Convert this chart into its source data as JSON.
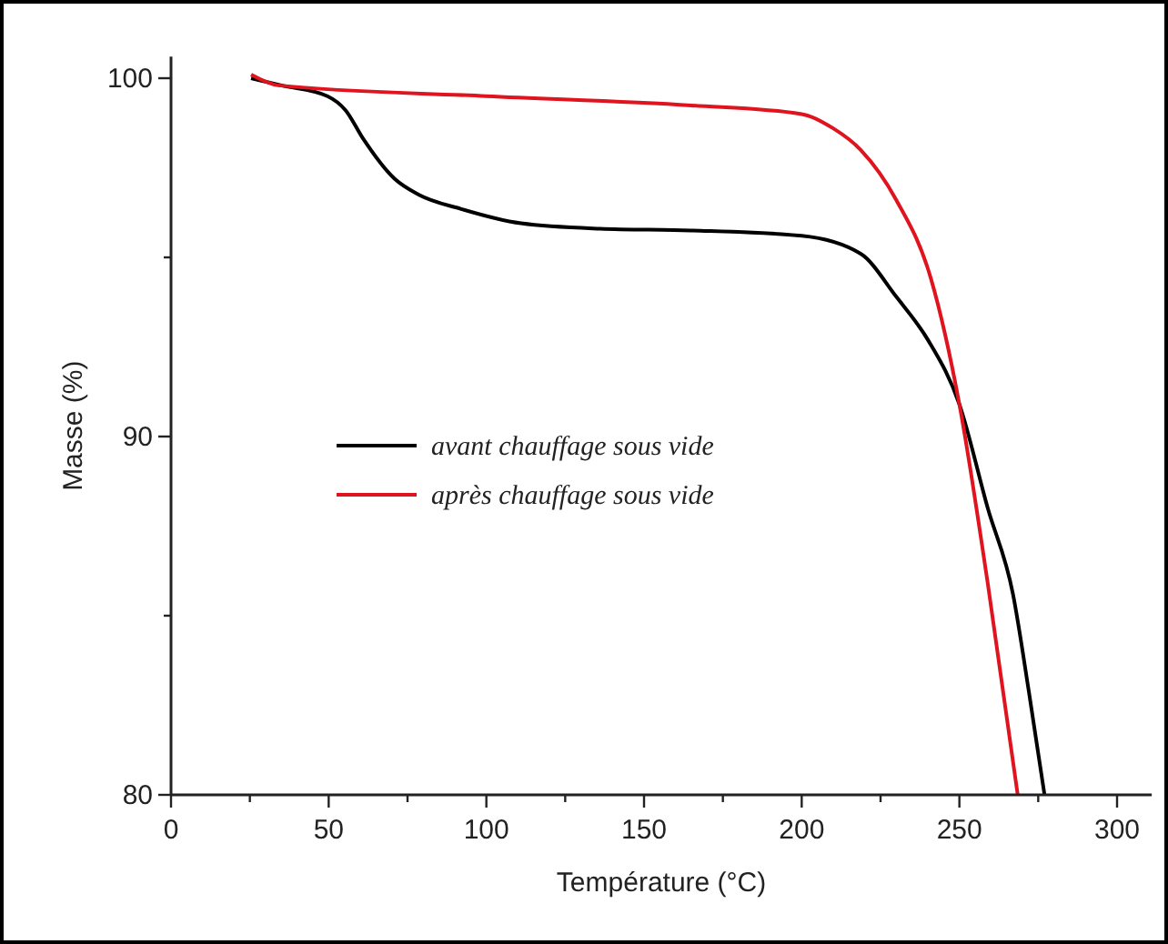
{
  "chart_data": {
    "type": "line",
    "xlabel": "Température (°C)",
    "ylabel": "Masse (%)",
    "xlim": [
      0,
      311
    ],
    "ylim": [
      80,
      100.6
    ],
    "xticks": [
      0,
      {
        "value": 25,
        "label": null
      },
      50,
      {
        "value": 75,
        "label": null
      },
      100,
      {
        "value": 125,
        "label": null
      },
      150,
      {
        "value": 175,
        "label": null
      },
      200,
      {
        "value": 225,
        "label": null
      },
      250,
      {
        "value": 275,
        "label": null
      },
      300
    ],
    "yticks": [
      80,
      {
        "value": 85,
        "label": null
      },
      90,
      {
        "value": 95,
        "label": null
      },
      100
    ],
    "grid": false,
    "legend": "left",
    "line_style": "solid",
    "series": [
      {
        "name": "avant chauffage sous vide",
        "color": "#000000",
        "x": [
          25.4,
          35,
          49.6,
          55.4,
          61,
          70.8,
          78.5,
          92,
          111,
          136,
          165,
          200,
          218.7,
          230,
          240,
          250,
          259,
          267,
          272,
          277
        ],
        "values": [
          100,
          99.8,
          99.5,
          99.1,
          98.3,
          97.2,
          96.75,
          96.35,
          95.95,
          95.8,
          95.75,
          95.6,
          95.1,
          93.9,
          92.7,
          90.9,
          88,
          85.6,
          82.9,
          80
        ]
      },
      {
        "name": "après chauffage sous vide",
        "color": "#e0141e",
        "x": [
          25.4,
          34,
          100,
          165,
          200,
          210,
          218.7,
          230,
          241,
          250,
          259,
          268.5
        ],
        "values": [
          100.1,
          99.8,
          99.5,
          99.24,
          99,
          98.6,
          98,
          96.6,
          94.4,
          90.9,
          85.9,
          80
        ]
      }
    ]
  }
}
